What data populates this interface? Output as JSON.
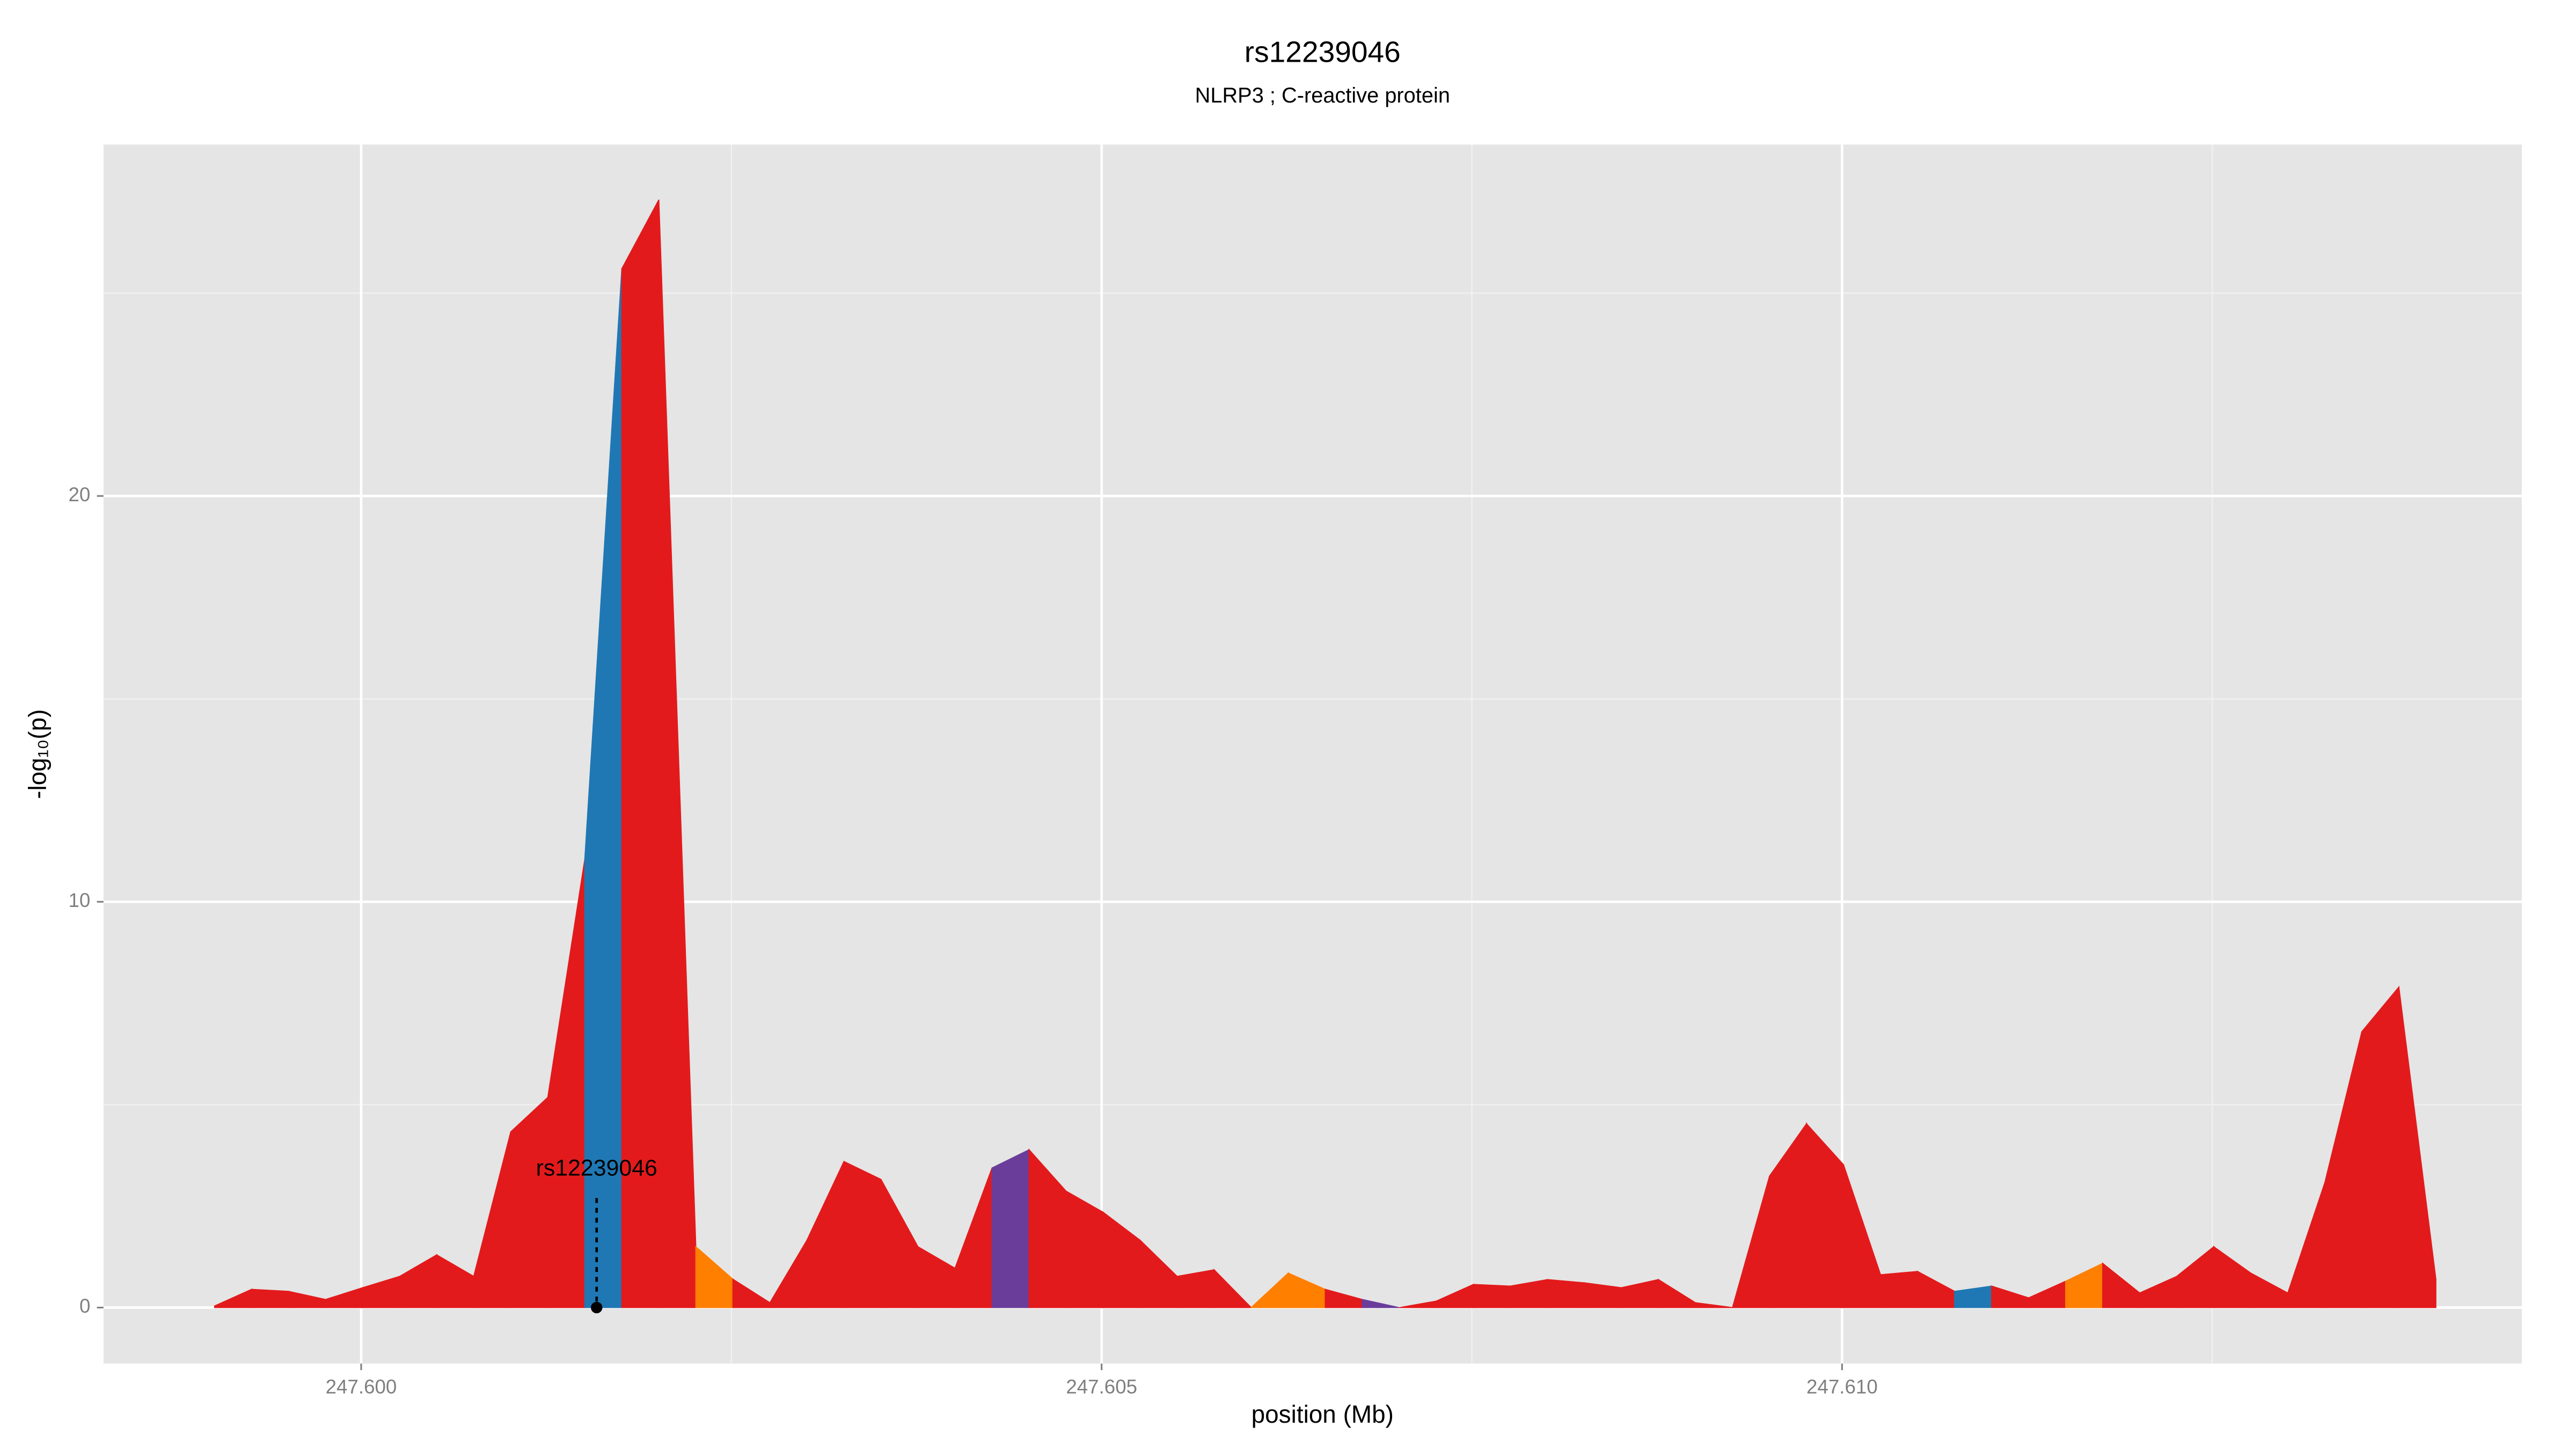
{
  "chart_data": {
    "type": "area",
    "title": "rs12239046",
    "subtitle": "NLRP3 ; C-reactive protein",
    "xlabel": "position (Mb)",
    "ylabel": "-log₁₀(p)",
    "x": [
      247.59901,
      247.59926,
      247.59951,
      247.59976,
      247.60001,
      247.60026,
      247.60051,
      247.60076,
      247.60101,
      247.60126,
      247.60151,
      247.60176,
      247.60201,
      247.60226,
      247.60251,
      247.60276,
      247.60301,
      247.60326,
      247.60351,
      247.60376,
      247.60401,
      247.60426,
      247.60451,
      247.60476,
      247.60501,
      247.60526,
      247.60551,
      247.60576,
      247.60601,
      247.60626,
      247.60651,
      247.60676,
      247.60701,
      247.60726,
      247.60751,
      247.60776,
      247.60801,
      247.60826,
      247.60851,
      247.60876,
      247.60901,
      247.60926,
      247.60951,
      247.60976,
      247.61001,
      247.61026,
      247.61051,
      247.61076,
      247.61101,
      247.61126,
      247.61151,
      247.61176,
      247.61201,
      247.61226,
      247.61251,
      247.61276,
      247.61301,
      247.61326,
      247.61351,
      247.61376,
      247.61401
    ],
    "values": [
      0.04,
      0.45,
      0.4,
      0.2,
      0.49,
      0.77,
      1.3,
      0.77,
      4.33,
      5.18,
      11.05,
      25.6,
      27.3,
      1.5,
      0.7,
      0.12,
      1.66,
      3.6,
      3.16,
      1.5,
      0.97,
      3.44,
      3.89,
      2.87,
      2.35,
      1.66,
      0.77,
      0.93,
      0,
      0.85,
      0.45,
      0.2,
      0,
      0.16,
      0.57,
      0.53,
      0.69,
      0.61,
      0.49,
      0.69,
      0.12,
      0,
      3.24,
      4.53,
      3.52,
      0.81,
      0.89,
      0.4,
      0.53,
      0.24,
      0.65,
      1.09,
      0.36,
      0.77,
      1.5,
      0.85,
      0.36,
      3.08,
      6.8,
      7.9,
      0.7
    ],
    "segment_colors": [
      "#e31a1c",
      "#e31a1c",
      "#e31a1c",
      "#e31a1c",
      "#e31a1c",
      "#e31a1c",
      "#e31a1c",
      "#e31a1c",
      "#e31a1c",
      "#e31a1c",
      "#1f78b4",
      "#e31a1c",
      "#e31a1c",
      "#ff7f00",
      "#e31a1c",
      "#e31a1c",
      "#e31a1c",
      "#e31a1c",
      "#e31a1c",
      "#e31a1c",
      "#e31a1c",
      "#6a3d9a",
      "#e31a1c",
      "#e31a1c",
      "#e31a1c",
      "#e31a1c",
      "#e31a1c",
      "#e31a1c",
      "#ff7f00",
      "#ff7f00",
      "#e31a1c",
      "#6a3d9a",
      "#e31a1c",
      "#e31a1c",
      "#e31a1c",
      "#e31a1c",
      "#e31a1c",
      "#e31a1c",
      "#e31a1c",
      "#e31a1c",
      "#e31a1c",
      "#e31a1c",
      "#e31a1c",
      "#e31a1c",
      "#e31a1c",
      "#e31a1c",
      "#e31a1c",
      "#1f78b4",
      "#e31a1c",
      "#e31a1c",
      "#ff7f00",
      "#e31a1c",
      "#e31a1c",
      "#e31a1c",
      "#e31a1c",
      "#e31a1c",
      "#e31a1c",
      "#e31a1c",
      "#e31a1c",
      "#e31a1c"
    ],
    "lead_snp": {
      "label": "rs12239046",
      "x": 247.60159,
      "y": 0
    },
    "xlim": [
      247.59826,
      247.61459
    ],
    "ylim": [
      -1.38,
      28.66
    ],
    "xticks": [
      {
        "value": 247.6,
        "label": "247.600"
      },
      {
        "value": 247.605,
        "label": "247.605"
      },
      {
        "value": 247.61,
        "label": "247.610"
      }
    ],
    "x_minor_ticks": [
      247.6025,
      247.6075,
      247.6125
    ],
    "yticks": [
      0,
      10,
      20
    ],
    "y_minor_ticks": [
      5,
      15,
      25
    ],
    "grid": true,
    "panel_color": "#e5e5e5"
  }
}
